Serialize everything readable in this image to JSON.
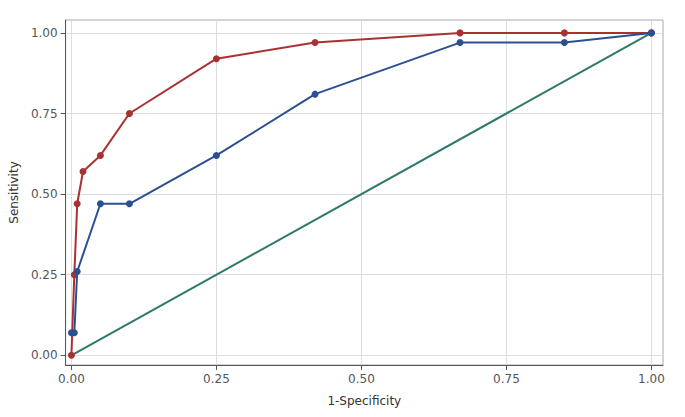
{
  "chart_data": {
    "type": "line",
    "xlabel": "1-Specificity",
    "ylabel": "Sensitivity",
    "series": [
      {
        "color": "#2e7a6a",
        "marker": "none",
        "x": [
          0.0,
          1.0
        ],
        "values": [
          0.0,
          1.0
        ]
      },
      {
        "color": "#2b5091",
        "marker": "circle",
        "x": [
          0.0,
          0.005,
          0.01,
          0.05,
          0.1,
          0.25,
          0.42,
          0.67,
          0.85,
          1.0
        ],
        "values": [
          0.07,
          0.07,
          0.26,
          0.47,
          0.47,
          0.62,
          0.81,
          0.97,
          0.97,
          1.0
        ]
      },
      {
        "color": "#a83232",
        "marker": "circle",
        "x": [
          0.0,
          0.005,
          0.01,
          0.02,
          0.05,
          0.1,
          0.25,
          0.42,
          0.67,
          0.85,
          1.0
        ],
        "values": [
          0.0,
          0.25,
          0.47,
          0.57,
          0.62,
          0.75,
          0.92,
          0.97,
          1.0,
          1.0,
          1.0
        ]
      }
    ],
    "xlim": [
      -0.01,
      1.02
    ],
    "ylim": [
      -0.03,
      1.04
    ],
    "xticks": [
      {
        "value": 0.0,
        "label": "0.00"
      },
      0.25,
      {
        "value": 0.5,
        "label": "0.50"
      },
      0.75,
      {
        "value": 1.0,
        "label": "1.00"
      }
    ],
    "yticks": [
      {
        "value": 0.0,
        "label": "0.00"
      },
      0.25,
      {
        "value": 0.5,
        "label": "0.50"
      },
      0.75,
      {
        "value": 1.0,
        "label": "1.00"
      }
    ],
    "grid": true
  }
}
